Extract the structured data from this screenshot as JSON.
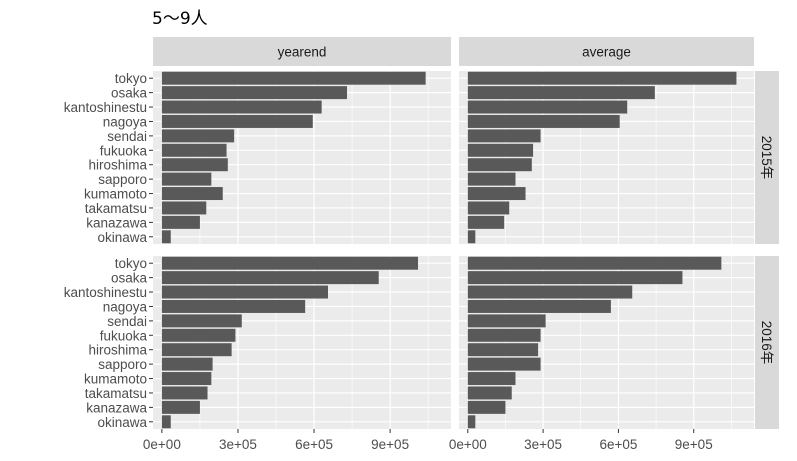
{
  "title": "5～9人",
  "colors": {
    "panel_bg": "#ebebeb",
    "grid": "#ffffff",
    "bar": "#595959",
    "strip_bg": "#d9d9d9",
    "tick_text": "#4d4d4d"
  },
  "chart_data": {
    "type": "bar",
    "orientation": "horizontal",
    "facet_columns": [
      "yearend",
      "average"
    ],
    "facet_rows": [
      "2015年",
      "2016年"
    ],
    "categories": [
      "tokyo",
      "osaka",
      "kantoshinestu",
      "nagoya",
      "sendai",
      "fukuoka",
      "hiroshima",
      "sapporo",
      "kumamoto",
      "takamatsu",
      "kanazawa",
      "okinawa"
    ],
    "x_ticks": [
      "0e+00",
      "3e+05",
      "6e+05",
      "9e+05"
    ],
    "x_tick_values": [
      0,
      300000,
      600000,
      900000
    ],
    "xlim": [
      -35000,
      1140000
    ],
    "grid": true,
    "panels": [
      {
        "col": "yearend",
        "row": "2015年",
        "values": [
          1040000,
          730000,
          630000,
          595000,
          285000,
          255000,
          260000,
          195000,
          240000,
          175000,
          150000,
          35000
        ]
      },
      {
        "col": "average",
        "row": "2015年",
        "values": [
          1070000,
          745000,
          635000,
          605000,
          290000,
          260000,
          255000,
          190000,
          230000,
          165000,
          145000,
          30000
        ]
      },
      {
        "col": "yearend",
        "row": "2016年",
        "values": [
          1010000,
          855000,
          655000,
          565000,
          315000,
          290000,
          275000,
          200000,
          195000,
          180000,
          150000,
          35000
        ]
      },
      {
        "col": "average",
        "row": "2016年",
        "values": [
          1010000,
          855000,
          655000,
          570000,
          310000,
          290000,
          280000,
          290000,
          190000,
          175000,
          150000,
          30000
        ]
      }
    ]
  }
}
